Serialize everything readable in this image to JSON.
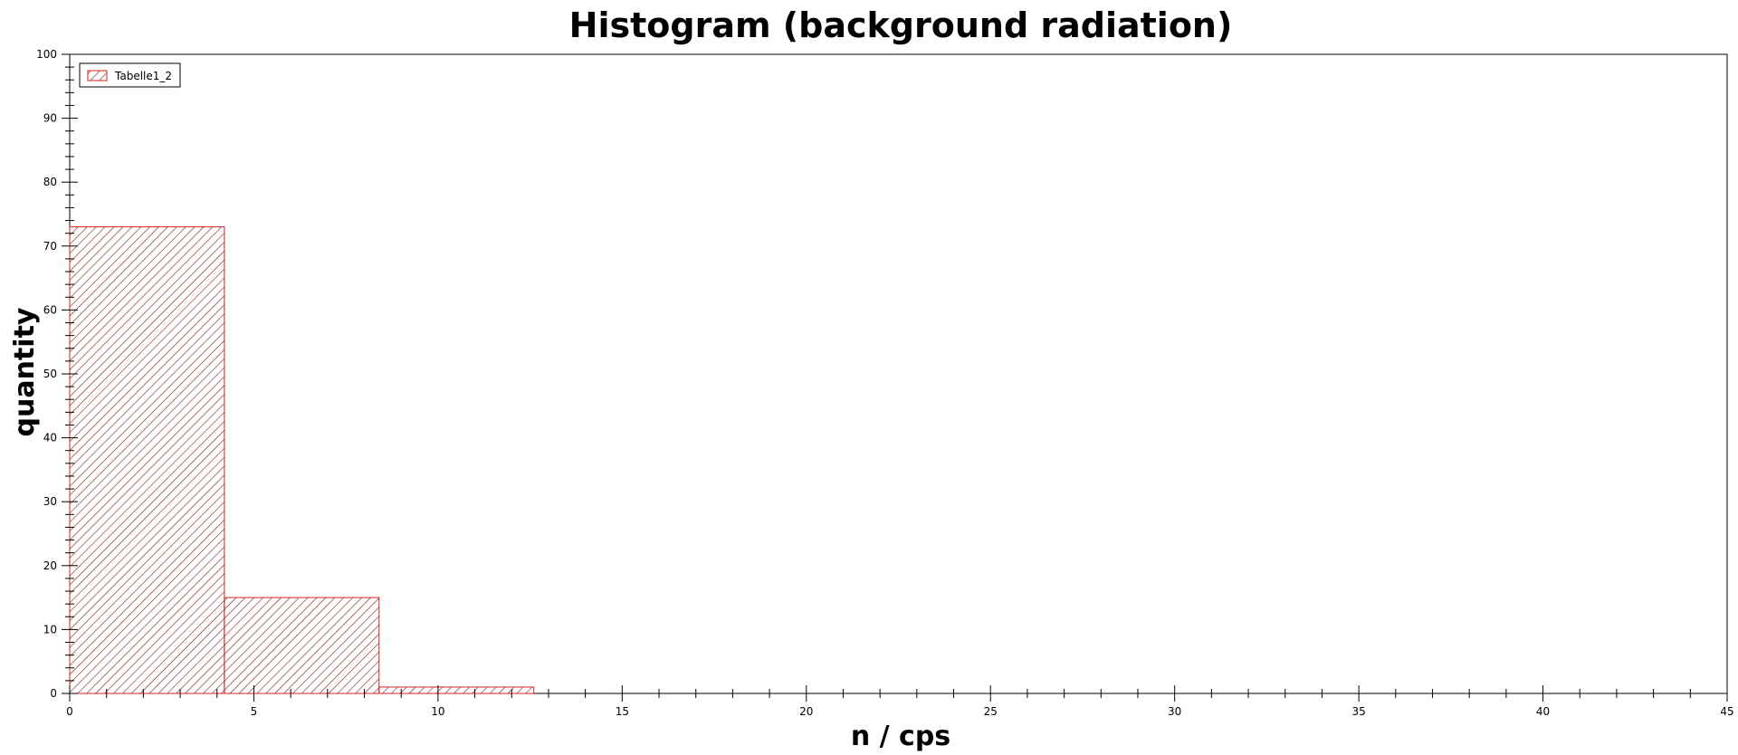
{
  "chart_data": {
    "type": "bar",
    "subtype": "histogram",
    "title": "Histogram (background radiation)",
    "xlabel": "n / cps",
    "ylabel": "quantity",
    "xlim": [
      0,
      45
    ],
    "ylim": [
      0,
      100
    ],
    "x_ticks": [
      0,
      5,
      10,
      15,
      20,
      25,
      30,
      35,
      40,
      45
    ],
    "y_ticks": [
      0,
      10,
      20,
      30,
      40,
      50,
      60,
      70,
      80,
      90,
      100
    ],
    "grid": false,
    "legend_position": "top-left",
    "series": [
      {
        "name": "Tabelle1_2",
        "color": "#d62020",
        "fill": "diagonal-hatch",
        "bins": [
          {
            "x0": 0,
            "x1": 4.2,
            "value": 73
          },
          {
            "x0": 4.2,
            "x1": 8.4,
            "value": 15
          },
          {
            "x0": 8.4,
            "x1": 12.6,
            "value": 1
          },
          {
            "x0": 12.6,
            "x1": 16.8,
            "value": 0
          },
          {
            "x0": 16.8,
            "x1": 21.0,
            "value": 0
          },
          {
            "x0": 21.0,
            "x1": 25.2,
            "value": 0
          },
          {
            "x0": 25.2,
            "x1": 29.4,
            "value": 0
          },
          {
            "x0": 29.4,
            "x1": 33.6,
            "value": 0
          },
          {
            "x0": 33.6,
            "x1": 37.8,
            "value": 0
          },
          {
            "x0": 37.8,
            "x1": 42.0,
            "value": 0
          }
        ]
      }
    ]
  }
}
